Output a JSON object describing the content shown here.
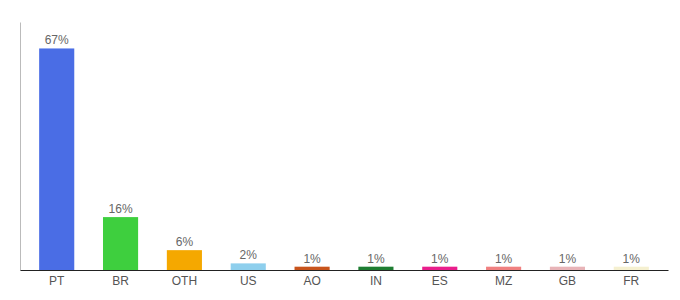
{
  "chart_data": {
    "type": "bar",
    "categories": [
      "PT",
      "BR",
      "OTH",
      "US",
      "AO",
      "IN",
      "ES",
      "MZ",
      "GB",
      "FR"
    ],
    "values": [
      67,
      16,
      6,
      2,
      1,
      1,
      1,
      1,
      1,
      1
    ],
    "value_labels": [
      "67%",
      "16%",
      "6%",
      "2%",
      "1%",
      "1%",
      "1%",
      "1%",
      "1%",
      "1%"
    ],
    "colors": [
      "#4a6de5",
      "#3ecf3e",
      "#f5a800",
      "#8ecfed",
      "#c8541c",
      "#1e7d32",
      "#e91e8c",
      "#f08080",
      "#e8b4b8",
      "#f5f0d0"
    ],
    "ylim": [
      0,
      75
    ],
    "data_labels": true,
    "tick_labels": "x",
    "grid": false
  }
}
